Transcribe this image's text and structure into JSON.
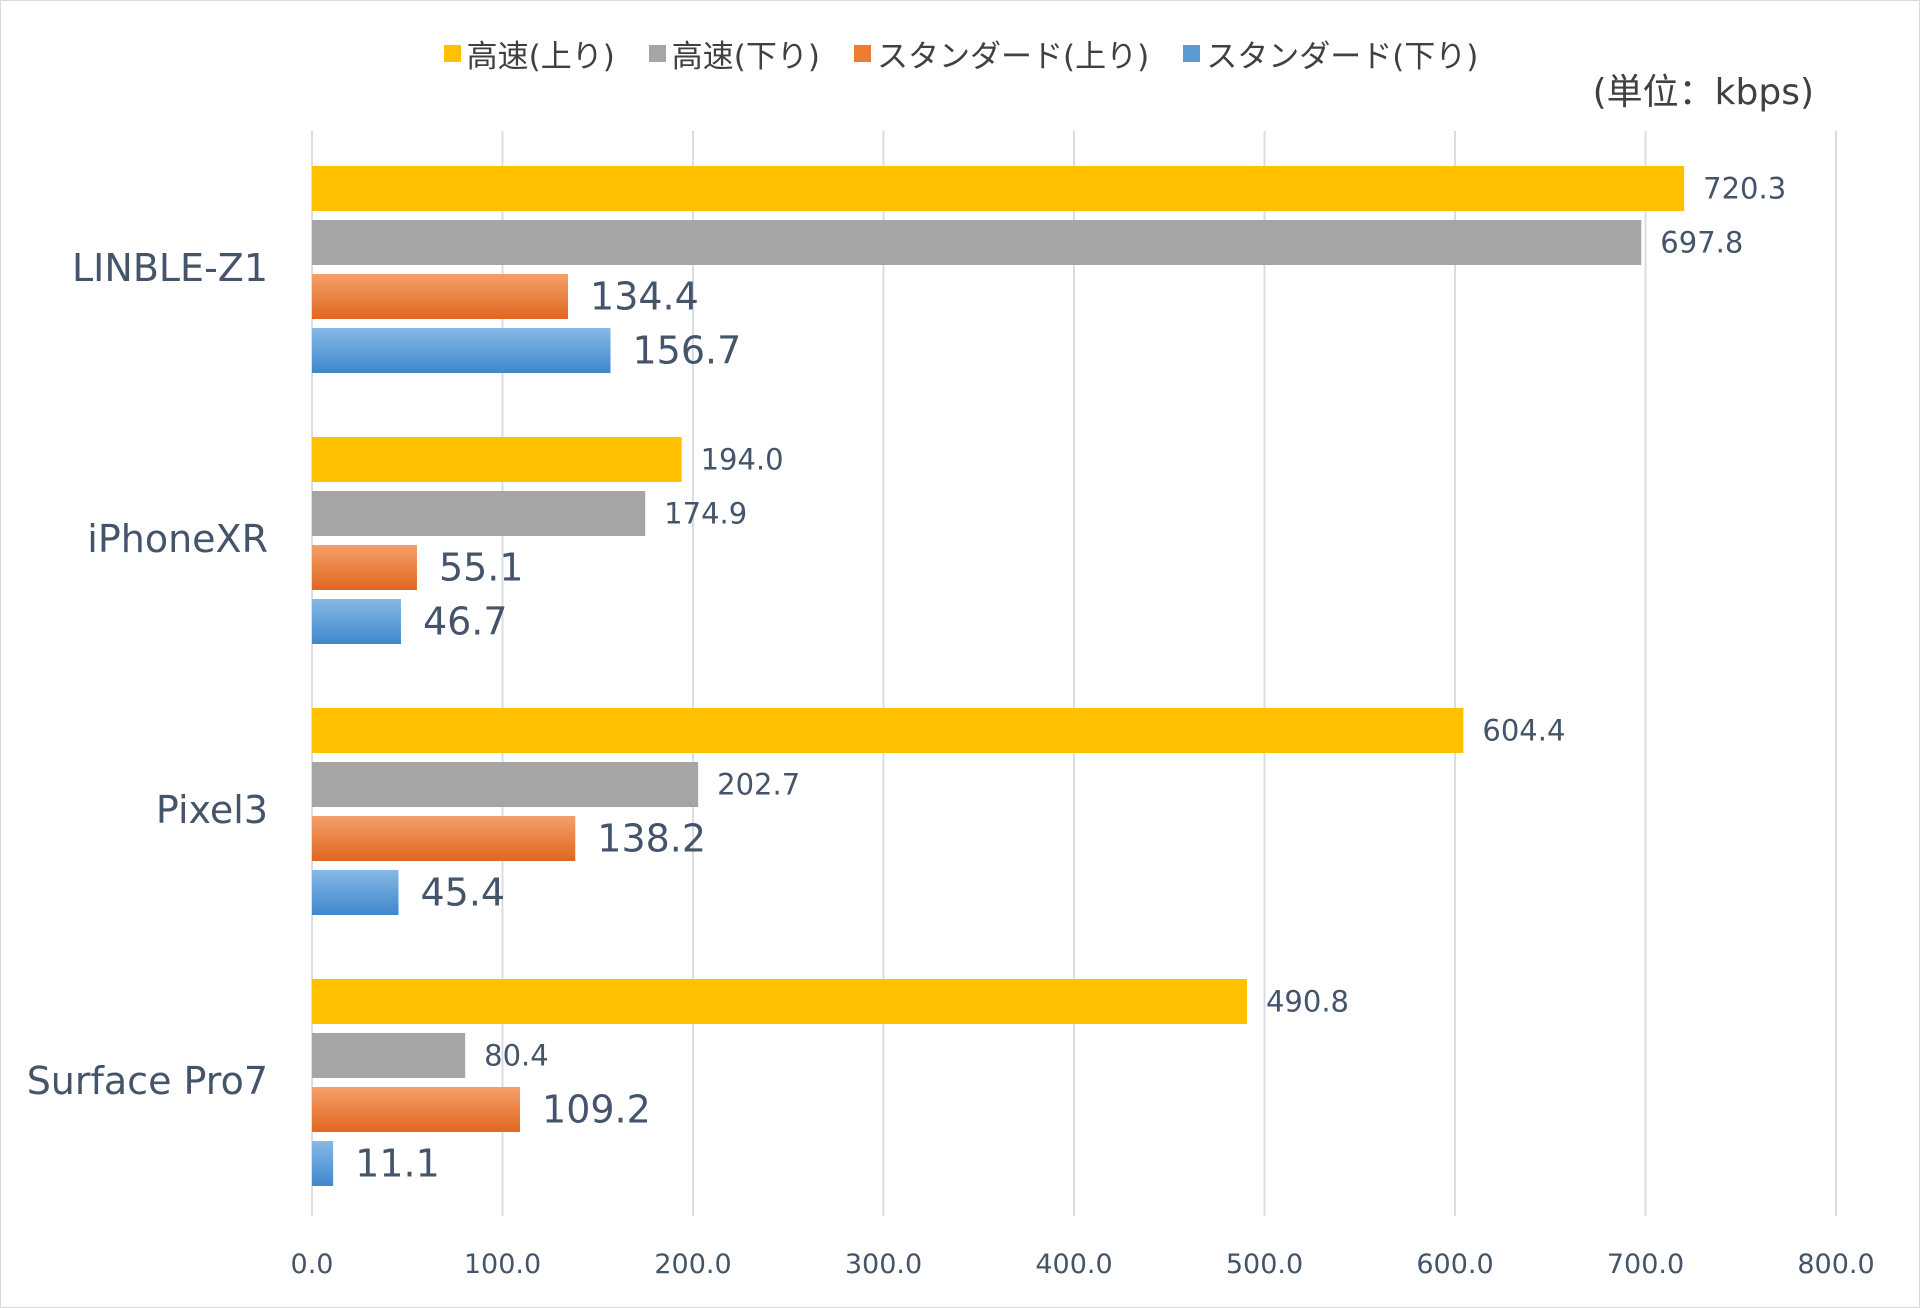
{
  "chart_data": {
    "type": "bar",
    "orientation": "horizontal",
    "categories": [
      "LINBLE-Z1",
      "iPhoneXR",
      "Pixel3",
      "Surface Pro7"
    ],
    "series": [
      {
        "name": "高速(上り)",
        "color": "#ffc000",
        "values": [
          720.3,
          194.0,
          604.4,
          490.8
        ]
      },
      {
        "name": "高速(下り)",
        "color": "#a5a5a5",
        "values": [
          697.8,
          174.9,
          202.7,
          80.4
        ]
      },
      {
        "name": "スタンダード(上り)",
        "color": "#ed7d31",
        "values": [
          134.4,
          55.1,
          138.2,
          109.2
        ]
      },
      {
        "name": "スタンダード(下り)",
        "color": "#5b9bd5",
        "values": [
          156.7,
          46.7,
          45.4,
          11.1
        ]
      }
    ],
    "xlim": [
      0,
      800
    ],
    "xticks": [
      "0.0",
      "100.0",
      "200.0",
      "300.0",
      "400.0",
      "500.0",
      "600.0",
      "700.0",
      "800.0"
    ],
    "unit_label": "(単位：kbps)",
    "legend_position": "top",
    "grid": true,
    "data_labels": true
  }
}
